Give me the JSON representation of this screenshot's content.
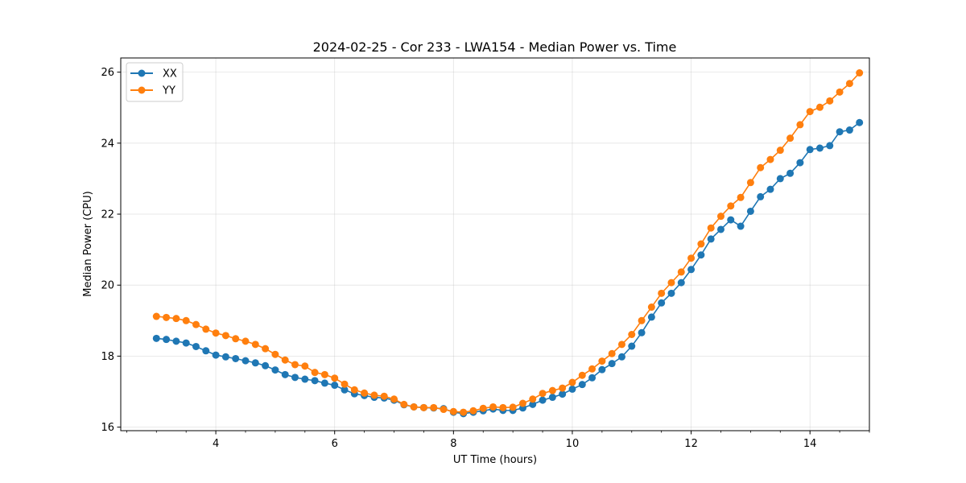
{
  "chart_data": {
    "type": "line",
    "title": "2024-02-25 - Cor 233 - LWA154 - Median Power vs. Time",
    "xlabel": "UT Time (hours)",
    "ylabel": "Median Power (CPU)",
    "xlim": [
      2.4,
      15.0
    ],
    "ylim": [
      15.9,
      26.4
    ],
    "xticks": [
      4,
      6,
      8,
      10,
      12,
      14
    ],
    "yticks": [
      16,
      18,
      20,
      22,
      24,
      26
    ],
    "grid": true,
    "legend_position": "top-left",
    "x": [
      3.0,
      3.1667,
      3.3333,
      3.5,
      3.6667,
      3.8333,
      4.0,
      4.1667,
      4.3333,
      4.5,
      4.6667,
      4.8333,
      5.0,
      5.1667,
      5.3333,
      5.5,
      5.6667,
      5.8333,
      6.0,
      6.1667,
      6.3333,
      6.5,
      6.6667,
      6.8333,
      7.0,
      7.1667,
      7.3333,
      7.5,
      7.6667,
      7.8333,
      8.0,
      8.1667,
      8.3333,
      8.5,
      8.6667,
      8.8333,
      9.0,
      9.1667,
      9.3333,
      9.5,
      9.6667,
      9.8333,
      10.0,
      10.1667,
      10.3333,
      10.5,
      10.6667,
      10.8333,
      11.0,
      11.1667,
      11.3333,
      11.5,
      11.6667,
      11.8333,
      12.0,
      12.1667,
      12.3333,
      12.5,
      12.6667,
      12.8333,
      13.0,
      13.1667,
      13.3333,
      13.5,
      13.6667,
      13.8333,
      14.0,
      14.1667,
      14.3333,
      14.5,
      14.6667,
      14.8333
    ],
    "series": [
      {
        "name": "XX",
        "color": "#1f77b4",
        "values": [
          18.5,
          18.47,
          18.42,
          18.37,
          18.27,
          18.15,
          18.03,
          17.98,
          17.93,
          17.87,
          17.81,
          17.73,
          17.61,
          17.48,
          17.4,
          17.35,
          17.31,
          17.24,
          17.18,
          17.05,
          16.94,
          16.89,
          16.84,
          16.82,
          16.76,
          16.63,
          16.57,
          16.55,
          16.54,
          16.52,
          16.42,
          16.38,
          16.42,
          16.46,
          16.51,
          16.47,
          16.47,
          16.54,
          16.64,
          16.76,
          16.84,
          16.93,
          17.07,
          17.2,
          17.39,
          17.62,
          17.79,
          17.98,
          18.28,
          18.66,
          19.1,
          19.5,
          19.77,
          20.07,
          20.44,
          20.85,
          21.3,
          21.57,
          21.84,
          21.66,
          22.08,
          22.49,
          22.7,
          23.0,
          23.15,
          23.45,
          23.82,
          23.86,
          23.93,
          24.32,
          24.37,
          24.58
        ]
      },
      {
        "name": "YY",
        "color": "#ff7f0e",
        "values": [
          19.12,
          19.09,
          19.06,
          19.0,
          18.89,
          18.76,
          18.65,
          18.58,
          18.49,
          18.42,
          18.33,
          18.21,
          18.05,
          17.89,
          17.76,
          17.72,
          17.54,
          17.48,
          17.38,
          17.21,
          17.05,
          16.96,
          16.9,
          16.87,
          16.79,
          16.64,
          16.57,
          16.55,
          16.55,
          16.5,
          16.44,
          16.42,
          16.46,
          16.53,
          16.57,
          16.55,
          16.56,
          16.67,
          16.79,
          16.95,
          17.03,
          17.1,
          17.26,
          17.46,
          17.64,
          17.86,
          18.07,
          18.33,
          18.61,
          19.0,
          19.38,
          19.77,
          20.07,
          20.37,
          20.76,
          21.16,
          21.61,
          21.94,
          22.23,
          22.47,
          22.89,
          23.31,
          23.54,
          23.8,
          24.14,
          24.52,
          24.89,
          25.01,
          25.19,
          25.44,
          25.68,
          25.98
        ]
      }
    ]
  }
}
